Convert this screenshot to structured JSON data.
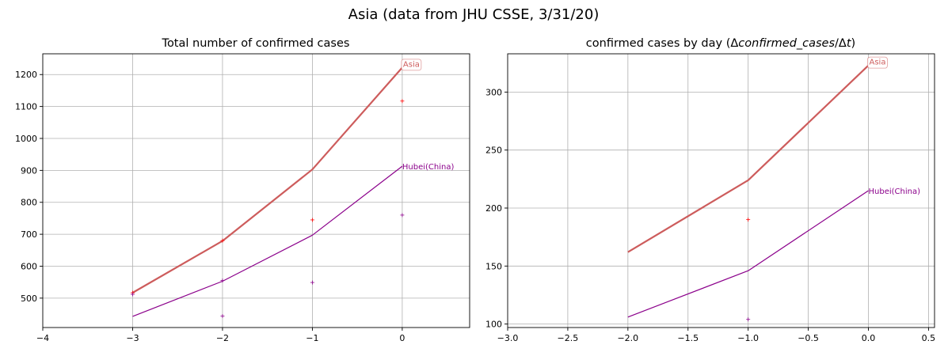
{
  "figure": {
    "title": "Asia (data from JHU CSSE, 3/31/20)"
  },
  "colors": {
    "asia": "#cd5c5c",
    "hubei": "#8b008b",
    "grid": "#b0b0b0",
    "marker_asia": "#ff0000"
  },
  "chart_data": [
    {
      "type": "line",
      "title": "Total number of confirmed cases",
      "xlim": [
        -4,
        0.75
      ],
      "ylim": [
        408,
        1265
      ],
      "xticks": [
        -4,
        -3,
        -2,
        -1,
        0
      ],
      "xtick_labels": [
        "−4",
        "−3",
        "−2",
        "−1",
        "0"
      ],
      "yticks": [
        500,
        600,
        700,
        800,
        900,
        1000,
        1100,
        1200
      ],
      "grid": true,
      "series": [
        {
          "name": "Asia",
          "x": [
            -3,
            -2,
            -1,
            0
          ],
          "y": [
            517,
            679,
            903,
            1222
          ],
          "color": "#cd5c5c",
          "width": 2.2,
          "label_style": "boxed"
        },
        {
          "name": "Hubei(China)",
          "x": [
            -3,
            -2,
            -1,
            0
          ],
          "y": [
            443,
            553,
            697,
            913
          ],
          "color": "#8b008b",
          "width": 1.2,
          "label_style": "plain"
        }
      ],
      "markers": [
        {
          "x": -3,
          "y": 517,
          "color": "#ff0000"
        },
        {
          "x": -2,
          "y": 680,
          "color": "#ff0000"
        },
        {
          "x": -1,
          "y": 745,
          "color": "#ff0000"
        },
        {
          "x": 0,
          "y": 1117,
          "color": "#ff0000"
        },
        {
          "x": -3,
          "y": 512,
          "color": "#8b008b"
        },
        {
          "x": -2,
          "y": 555,
          "color": "#8b008b"
        },
        {
          "x": -2,
          "y": 444,
          "color": "#8b008b"
        },
        {
          "x": -1,
          "y": 549,
          "color": "#8b008b"
        },
        {
          "x": 0,
          "y": 760,
          "color": "#8b008b"
        }
      ]
    },
    {
      "type": "line",
      "title": "confirmed cases by day (Δconfirmed_cases/Δt)",
      "title_parts": {
        "plain": "confirmed cases by day ",
        "open": "(",
        "delta1": "Δ",
        "ital1": "confirmed_cases",
        "slash": "/",
        "delta2": "Δ",
        "ital2": "t",
        "close": ")"
      },
      "xlim": [
        -3.0,
        0.55
      ],
      "ylim": [
        97,
        333
      ],
      "xticks": [
        -3.0,
        -2.5,
        -2.0,
        -1.5,
        -1.0,
        -0.5,
        0.0,
        0.5
      ],
      "xtick_labels": [
        "−3.0",
        "−2.5",
        "−2.0",
        "−1.5",
        "−1.0",
        "−0.5",
        "0.0",
        "0.5"
      ],
      "yticks": [
        100,
        150,
        200,
        250,
        300
      ],
      "grid": true,
      "series": [
        {
          "name": "Asia",
          "x": [
            -2,
            -1,
            0
          ],
          "y": [
            162,
            224,
            323
          ],
          "color": "#cd5c5c",
          "width": 2.2,
          "label_style": "boxed"
        },
        {
          "name": "Hubei(China)",
          "x": [
            -2,
            -1,
            0
          ],
          "y": [
            106,
            146,
            215
          ],
          "color": "#8b008b",
          "width": 1.2,
          "label_style": "plain"
        }
      ],
      "markers": [
        {
          "x": -1,
          "y": 190,
          "color": "#ff0000"
        },
        {
          "x": -1,
          "y": 104,
          "color": "#8b008b"
        }
      ]
    }
  ]
}
